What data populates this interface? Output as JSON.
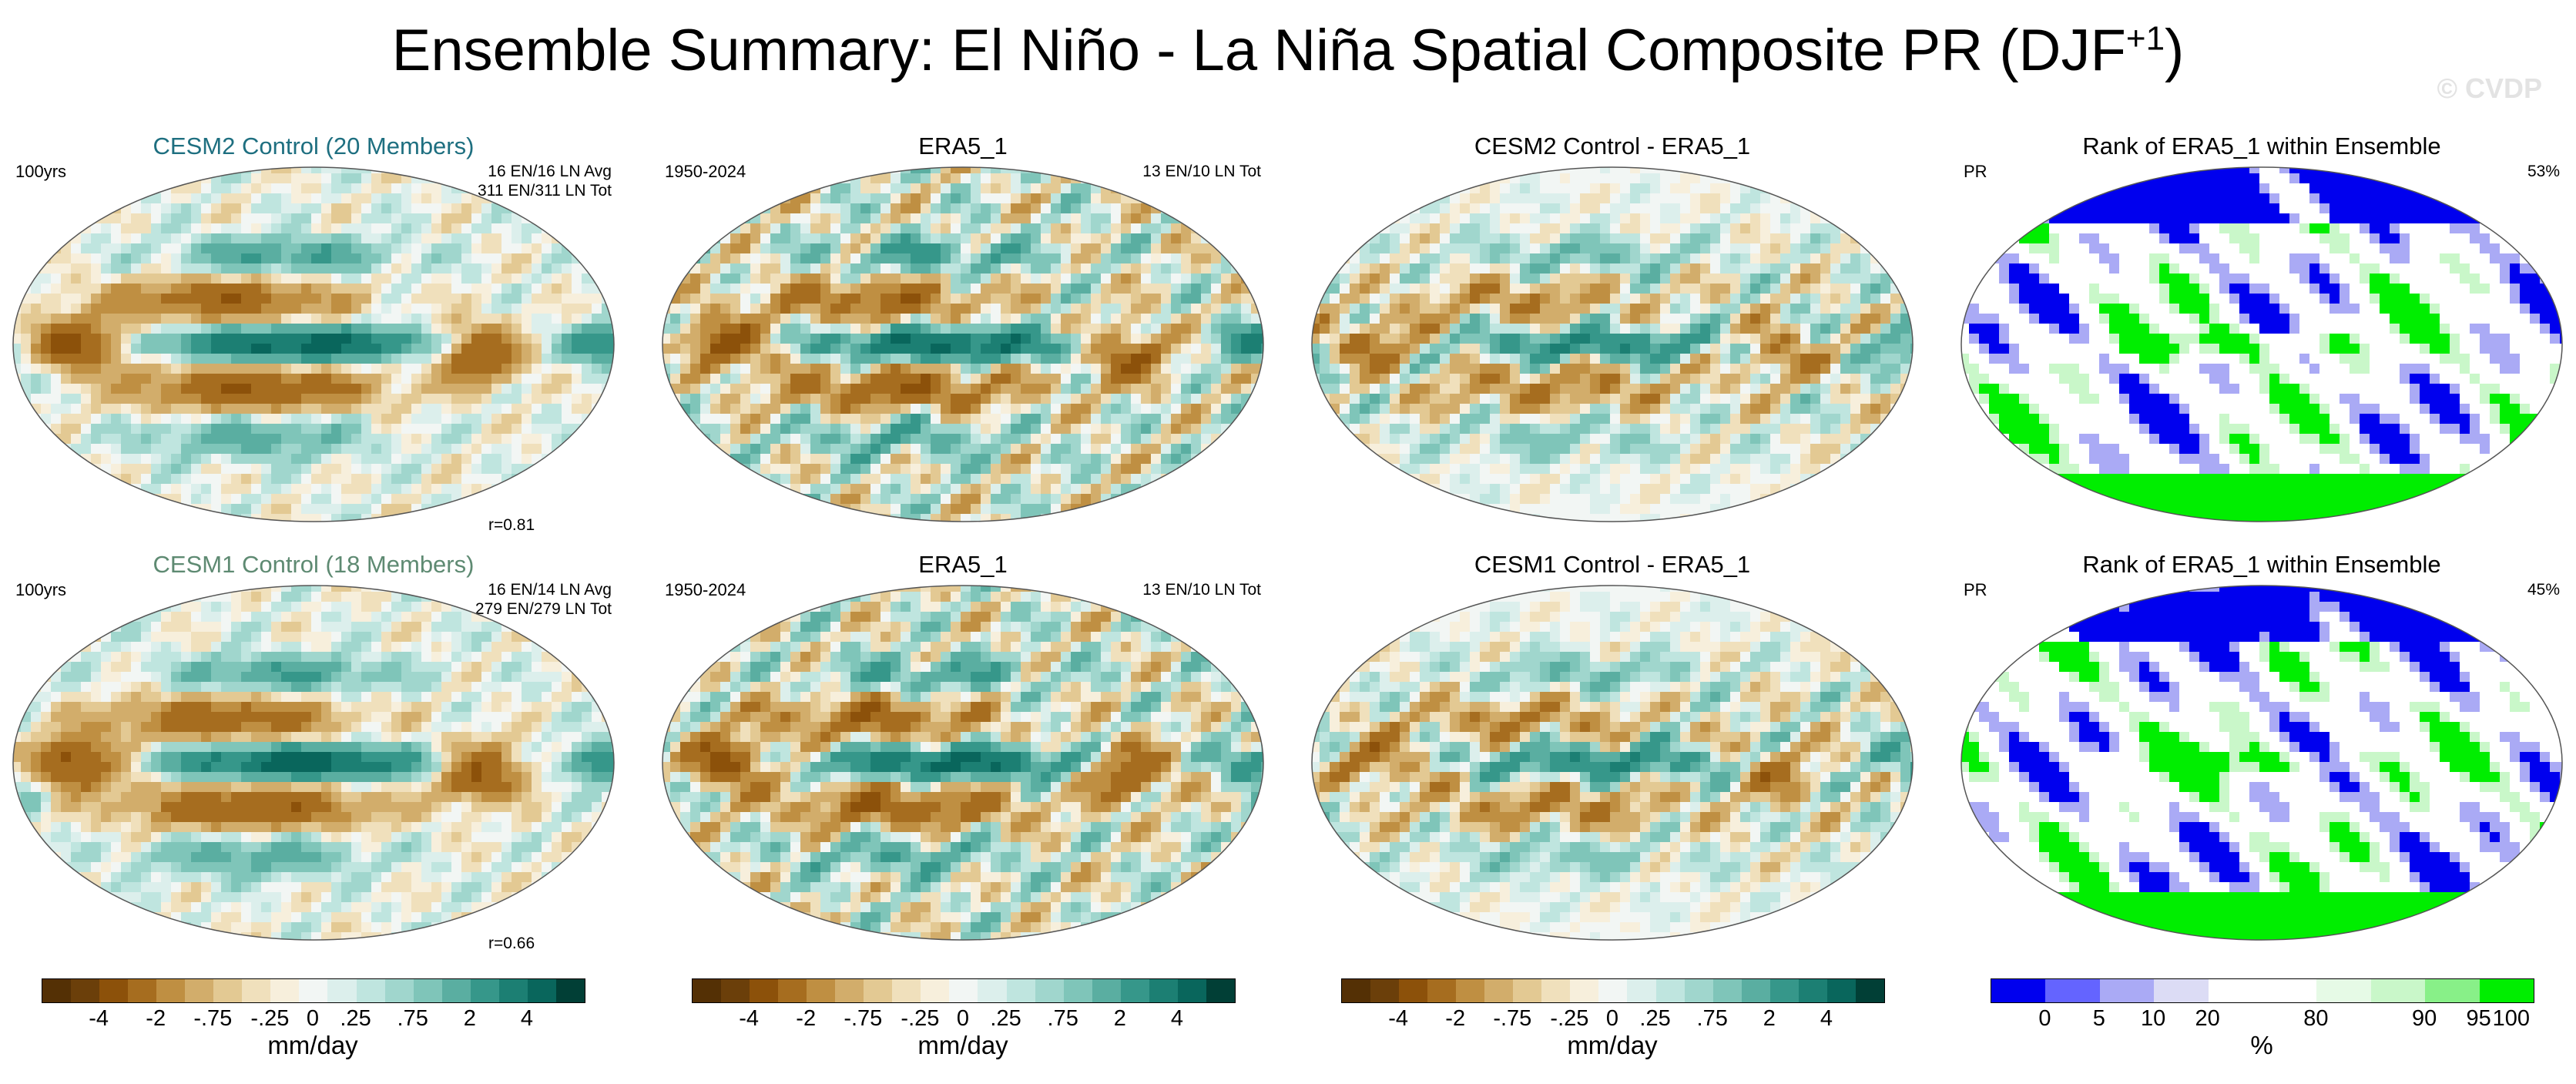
{
  "title": "Ensemble Summary: El Niño - La Niña Spatial Composite PR (DJF",
  "title_sup": "+1",
  "title_close": ")",
  "watermark": "© CVDP",
  "colors": {
    "cesm2_title": "#1e6f80",
    "cesm1_title": "#5e8a72",
    "rank_low": "#0000ee",
    "rank_high": "#00ee00",
    "diverging": [
      "#543005",
      "#6b3f0a",
      "#8c510a",
      "#a66d1f",
      "#bf8f42",
      "#d2ad6b",
      "#e3c993",
      "#f0e0bc",
      "#f7efdc",
      "#f2f6f4",
      "#dcefec",
      "#bfe5df",
      "#a0d6cd",
      "#7fc5b9",
      "#5aaea1",
      "#36978a",
      "#1c7f73",
      "#09665c",
      "#013f36"
    ],
    "rank": [
      "#0000ee",
      "#6464ff",
      "#aaaaf5",
      "#dcdcf5",
      "#ffffff",
      "#ffffff",
      "#e6fae6",
      "#c9f7c9",
      "#88f088",
      "#00ee00"
    ]
  },
  "chart_data": [
    {
      "type": "heatmap",
      "title": "CESM2 Control (20 Members)",
      "left_label": "100yrs",
      "right_label": [
        "16 EN/16 LN Avg",
        "311 EN/311 LN Tot"
      ],
      "bottom_label": "r=0.81",
      "field": "PR composite",
      "units": "mm/day",
      "levels": [
        "-4",
        "-2",
        "-.75",
        "-.25",
        "0",
        ".25",
        ".75",
        "2",
        "4"
      ]
    },
    {
      "type": "heatmap",
      "title": "ERA5_1",
      "left_label": "1950-2024",
      "right_label": [
        "13 EN/10 LN Tot"
      ],
      "field": "PR composite",
      "units": "mm/day"
    },
    {
      "type": "heatmap",
      "title": "CESM2 Control - ERA5_1",
      "field": "PR difference",
      "units": "mm/day"
    },
    {
      "type": "heatmap",
      "title": "Rank of ERA5_1 within Ensemble",
      "left_label": "PR",
      "right_label": [
        "53%"
      ],
      "units": "%",
      "levels": [
        "0",
        "5",
        "10",
        "20",
        "80",
        "90",
        "95",
        "100"
      ]
    },
    {
      "type": "heatmap",
      "title": "CESM1 Control (18 Members)",
      "left_label": "100yrs",
      "right_label": [
        "16 EN/14 LN Avg",
        "279 EN/279 LN Tot"
      ],
      "bottom_label": "r=0.66",
      "field": "PR composite",
      "units": "mm/day"
    },
    {
      "type": "heatmap",
      "title": "ERA5_1",
      "left_label": "1950-2024",
      "right_label": [
        "13 EN/10 LN Tot"
      ],
      "field": "PR composite",
      "units": "mm/day"
    },
    {
      "type": "heatmap",
      "title": "CESM1 Control - ERA5_1",
      "field": "PR difference",
      "units": "mm/day"
    },
    {
      "type": "heatmap",
      "title": "Rank of ERA5_1 within Ensemble",
      "left_label": "PR",
      "right_label": [
        "45%"
      ],
      "units": "%"
    }
  ],
  "panels": [
    {
      "title": "CESM2 Control (20 Members)",
      "left": "100yrs",
      "right1": "16 EN/16 LN Avg",
      "right2": "311 EN/311 LN Tot",
      "bottom": "r=0.81",
      "kind": "model"
    },
    {
      "title": "ERA5_1",
      "left": "1950-2024",
      "right1": "13 EN/10 LN Tot",
      "right2": "",
      "bottom": "",
      "kind": "obs"
    },
    {
      "title": "CESM2 Control - ERA5_1",
      "left": "",
      "right1": "",
      "right2": "",
      "bottom": "",
      "kind": "diff"
    },
    {
      "title": "Rank of ERA5_1 within Ensemble",
      "left": "PR",
      "right1": "53%",
      "right2": "",
      "bottom": "",
      "kind": "rank"
    },
    {
      "title": "CESM1 Control (18 Members)",
      "left": "100yrs",
      "right1": "16 EN/14 LN Avg",
      "right2": "279 EN/279 LN Tot",
      "bottom": "r=0.66",
      "kind": "model"
    },
    {
      "title": "ERA5_1",
      "left": "1950-2024",
      "right1": "13 EN/10 LN Tot",
      "right2": "",
      "bottom": "",
      "kind": "obs"
    },
    {
      "title": "CESM1 Control - ERA5_1",
      "left": "",
      "right1": "",
      "right2": "",
      "bottom": "",
      "kind": "diff"
    },
    {
      "title": "Rank of ERA5_1 within Ensemble",
      "left": "PR",
      "right1": "45%",
      "right2": "",
      "bottom": "",
      "kind": "rank"
    }
  ],
  "colorbars": [
    {
      "kind": "div",
      "ticks": [
        "-4",
        "-2",
        "-.75",
        "-.25",
        "0",
        ".25",
        ".75",
        "2",
        "4"
      ],
      "unit": "mm/day"
    },
    {
      "kind": "div",
      "ticks": [
        "-4",
        "-2",
        "-.75",
        "-.25",
        "0",
        ".25",
        ".75",
        "2",
        "4"
      ],
      "unit": "mm/day"
    },
    {
      "kind": "div",
      "ticks": [
        "-4",
        "-2",
        "-.75",
        "-.25",
        "0",
        ".25",
        ".75",
        "2",
        "4"
      ],
      "unit": "mm/day"
    },
    {
      "kind": "rank",
      "ticks": [
        "0",
        "5",
        "10",
        "20",
        "80",
        "90",
        "95",
        "100"
      ],
      "unit": "%"
    }
  ]
}
